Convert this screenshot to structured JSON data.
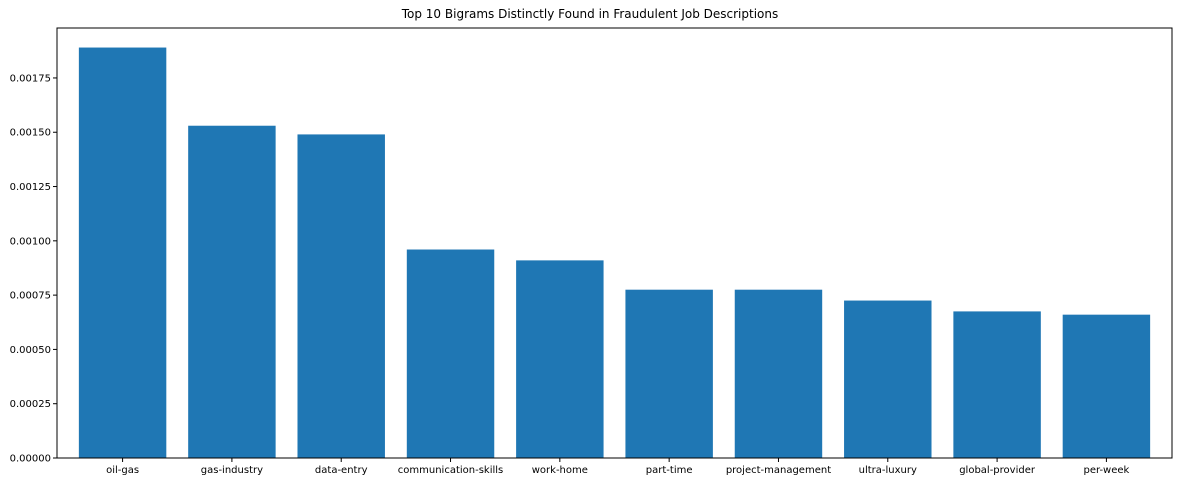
{
  "chart_data": {
    "type": "bar",
    "title": "Top 10 Bigrams Distinctly Found in Fraudulent Job Descriptions",
    "xlabel": "",
    "ylabel": "",
    "categories": [
      "oil-gas",
      "gas-industry",
      "data-entry",
      "communication-skills",
      "work-home",
      "part-time",
      "project-management",
      "ultra-luxury",
      "global-provider",
      "per-week"
    ],
    "values": [
      0.00189,
      0.00153,
      0.00149,
      0.00096,
      0.00091,
      0.000775,
      0.000775,
      0.000725,
      0.000675,
      0.00066
    ],
    "yticks": [
      "0.00000",
      "0.00025",
      "0.00050",
      "0.00075",
      "0.00100",
      "0.00125",
      "0.00150",
      "0.00175"
    ],
    "ylim": [
      0,
      0.00198
    ],
    "grid": false,
    "legend": "none",
    "bar_color": "#1f77b4"
  }
}
